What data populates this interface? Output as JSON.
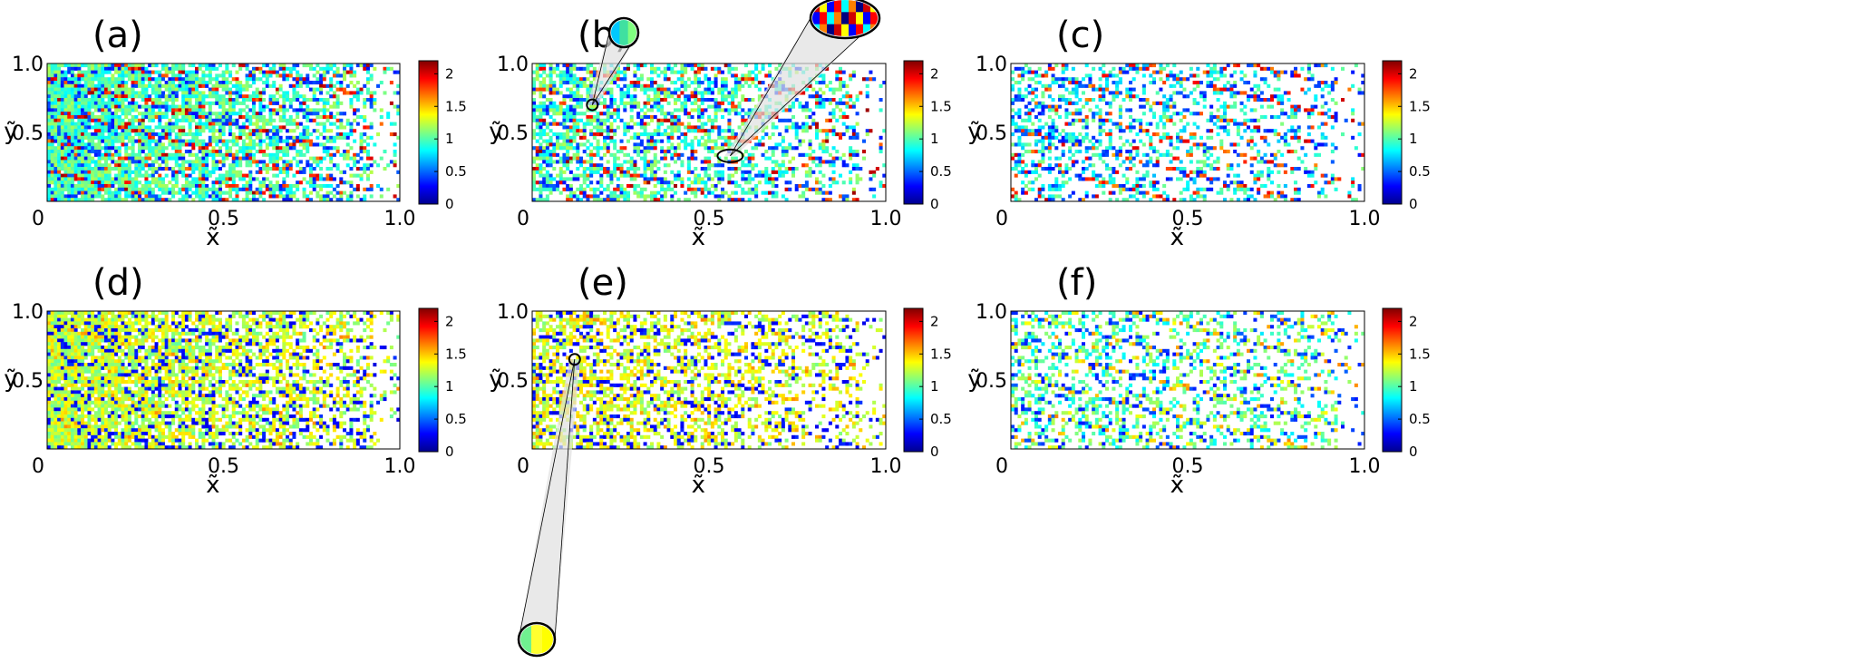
{
  "figure": {
    "colormap": [
      "#00008f",
      "#0000ff",
      "#0080ff",
      "#00ffff",
      "#80ff80",
      "#ffff00",
      "#ff8000",
      "#ff0000",
      "#800000"
    ]
  },
  "chart_data": [
    {
      "type": "heatmap",
      "panel_label": "(a)",
      "xlabel": "x̃",
      "ylabel": "ỹ",
      "x_ticks": [
        "0",
        "0.5",
        "1.0"
      ],
      "y_ticks": [
        "0.5",
        "1.0"
      ],
      "xlim": [
        0,
        1
      ],
      "ylim": [
        0,
        1
      ],
      "colorbar": {
        "range": [
          0,
          2.2
        ],
        "ticks": [
          "0",
          "0.5",
          "1",
          "1.5",
          "2"
        ]
      },
      "dominant_value": 1.0,
      "streak_value": 1.9,
      "wake_streak_value": 0.3,
      "fill_density": 0.9,
      "background": "white"
    },
    {
      "type": "heatmap",
      "panel_label": "(b)",
      "xlabel": "x̃",
      "ylabel": "ỹ",
      "x_ticks": [
        "0",
        "0.5",
        "1.0"
      ],
      "y_ticks": [
        "0.5",
        "1.0"
      ],
      "xlim": [
        0,
        1
      ],
      "ylim": [
        0,
        1
      ],
      "colorbar": {
        "range": [
          0,
          2.2
        ],
        "ticks": [
          "0",
          "0.5",
          "1",
          "1.5",
          "2"
        ]
      },
      "dominant_value": 1.0,
      "streak_value": 1.9,
      "wake_streak_value": 0.3,
      "fill_density": 0.55,
      "background": "white",
      "zoom_insets": [
        {
          "target": [
            0.17,
            0.7
          ],
          "preview_colors": [
            "#00c8ff",
            "#40e0a0",
            "#80ff80"
          ]
        },
        {
          "target": [
            0.56,
            0.33
          ],
          "preview_colors": [
            "#d00000",
            "#ffff00",
            "#0000ff",
            "#ff0000",
            "#00ffff",
            "#ff8000",
            "#000080"
          ]
        }
      ]
    },
    {
      "type": "heatmap",
      "panel_label": "(c)",
      "xlabel": "x̃",
      "ylabel": "ỹ",
      "x_ticks": [
        "0",
        "0.5",
        "1.0"
      ],
      "y_ticks": [
        "0.5",
        "1.0"
      ],
      "xlim": [
        0,
        1
      ],
      "ylim": [
        0,
        1
      ],
      "colorbar": {
        "range": [
          0,
          2.2
        ],
        "ticks": [
          "0",
          "0.5",
          "1",
          "1.5",
          "2"
        ]
      },
      "dominant_value": 0.9,
      "streak_value": 1.8,
      "wake_streak_value": 0.3,
      "fill_density": 0.3,
      "background": "white"
    },
    {
      "type": "heatmap",
      "panel_label": "(d)",
      "xlabel": "x̃",
      "ylabel": "ỹ",
      "x_ticks": [
        "0",
        "0.5",
        "1.0"
      ],
      "y_ticks": [
        "0.5",
        "1.0"
      ],
      "xlim": [
        0,
        1
      ],
      "ylim": [
        0,
        1
      ],
      "colorbar": {
        "range": [
          0,
          2.2
        ],
        "ticks": [
          "0",
          "0.5",
          "1",
          "1.5",
          "2"
        ]
      },
      "dominant_value": 1.25,
      "streak_value": 1.4,
      "wake_streak_value": 0.2,
      "fill_density": 0.9,
      "background": "white"
    },
    {
      "type": "heatmap",
      "panel_label": "(e)",
      "xlabel": "x̃",
      "ylabel": "ỹ",
      "x_ticks": [
        "0",
        "0.5",
        "1.0"
      ],
      "y_ticks": [
        "0.5",
        "1.0"
      ],
      "xlim": [
        0,
        1
      ],
      "ylim": [
        0,
        1
      ],
      "colorbar": {
        "range": [
          0,
          2.2
        ],
        "ticks": [
          "0",
          "0.5",
          "1",
          "1.5",
          "2"
        ]
      },
      "dominant_value": 1.3,
      "streak_value": 1.4,
      "wake_streak_value": 0.2,
      "fill_density": 0.55,
      "background": "white",
      "zoom_insets": [
        {
          "target": [
            0.12,
            0.65
          ],
          "preview_colors": [
            "#70f090",
            "#ffff30",
            "#ffff00"
          ]
        }
      ]
    },
    {
      "type": "heatmap",
      "panel_label": "(f)",
      "xlabel": "x̃",
      "ylabel": "ỹ",
      "x_ticks": [
        "0",
        "0.5",
        "1.0"
      ],
      "y_ticks": [
        "0.5",
        "1.0"
      ],
      "xlim": [
        0,
        1
      ],
      "ylim": [
        0,
        1
      ],
      "colorbar": {
        "range": [
          0,
          2.2
        ],
        "ticks": [
          "0",
          "0.5",
          "1",
          "1.5",
          "2"
        ]
      },
      "dominant_value": 1.0,
      "streak_value": 1.4,
      "wake_streak_value": 0.3,
      "fill_density": 0.3,
      "background": "white"
    }
  ]
}
